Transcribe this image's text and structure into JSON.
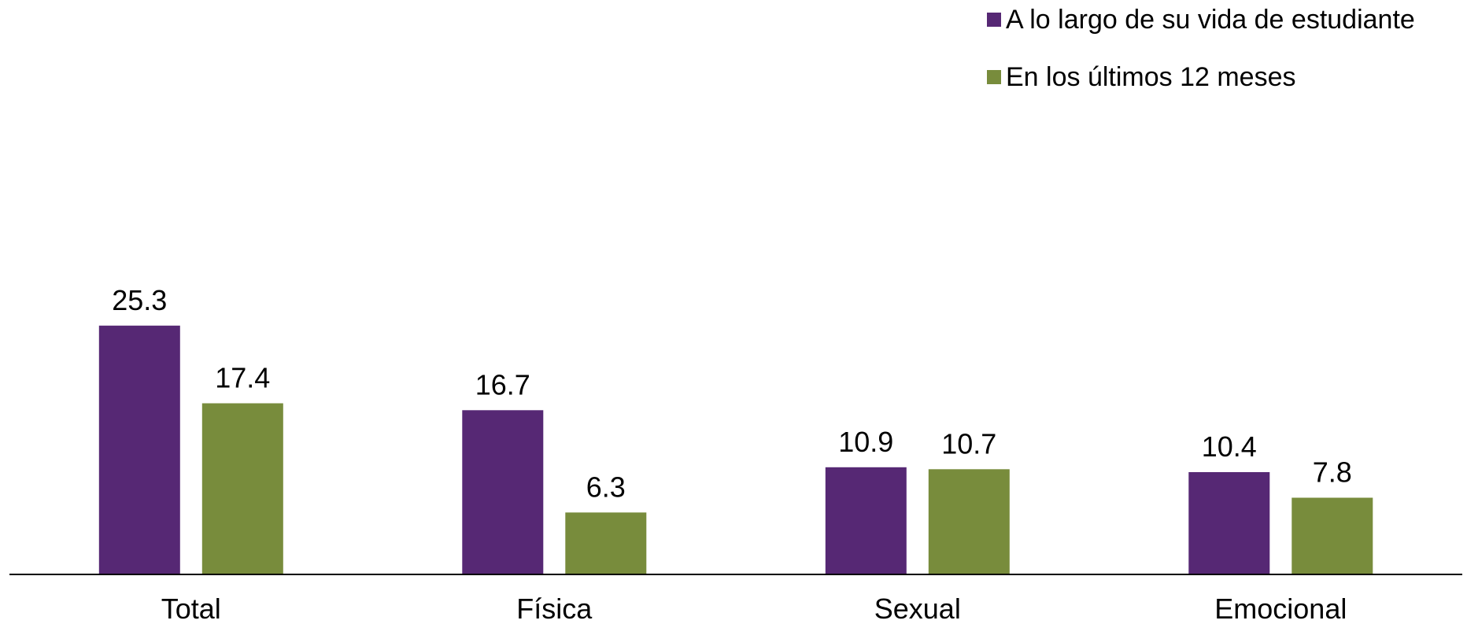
{
  "chart_data": {
    "type": "bar",
    "categories": [
      "Total",
      "Física",
      "Sexual",
      "Emocional"
    ],
    "series": [
      {
        "name": "A lo largo de su vida de estudiante",
        "color": "#562874",
        "values": [
          25.3,
          16.7,
          10.9,
          10.4
        ]
      },
      {
        "name": "En los últimos 12 meses",
        "color": "#788C3C",
        "values": [
          17.4,
          6.3,
          10.7,
          7.8
        ]
      }
    ],
    "ylim": [
      0,
      25.3
    ],
    "legend_position": "top-right",
    "grid": false,
    "data_labels": true
  }
}
